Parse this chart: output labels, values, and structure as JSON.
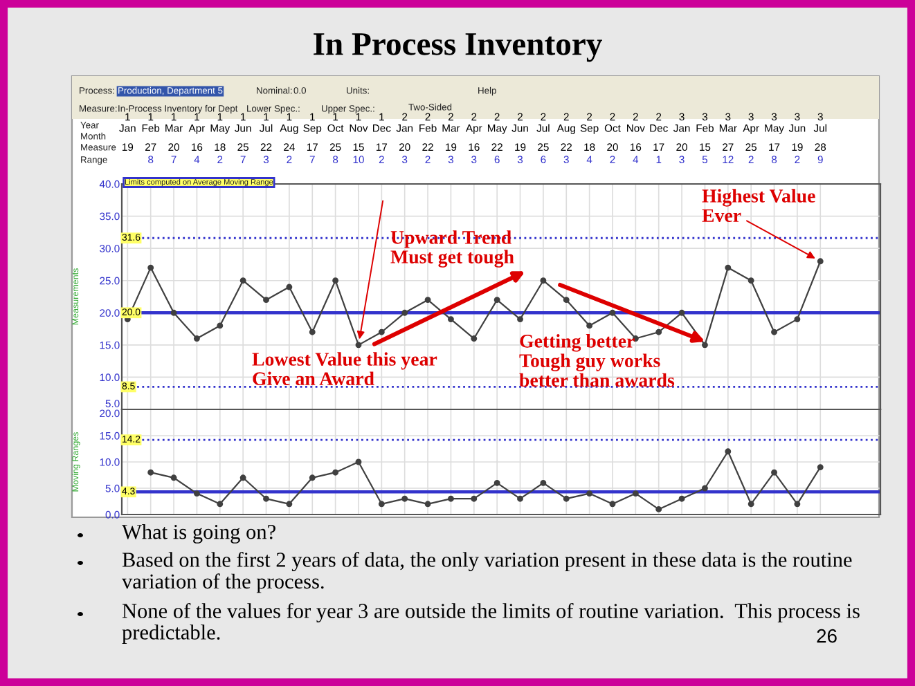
{
  "chart_data": [
    {
      "type": "line",
      "title": "In Process Inventory",
      "ylabel": "Measurements",
      "categories": [
        "1\nJan",
        "1\nFeb",
        "1\nMar",
        "1\nApr",
        "1\nMay",
        "1\nJun",
        "1\nJul",
        "1\nAug",
        "1\nSep",
        "1\nOct",
        "1\nNov",
        "1\nDec",
        "2\nJan",
        "2\nFeb",
        "2\nMar",
        "2\nApr",
        "2\nMay",
        "2\nJun",
        "2\nJul",
        "2\nAug",
        "2\nSep",
        "2\nOct",
        "2\nNov",
        "2\nDec",
        "3\nJan",
        "3\nFeb",
        "3\nMar",
        "3\nApr",
        "3\nMay",
        "3\nJun",
        "3\nJul"
      ],
      "series": [
        {
          "color": "#404040",
          "values": [
            19,
            27,
            20,
            16,
            18,
            25,
            22,
            24,
            17,
            25,
            15,
            17,
            20,
            22,
            19,
            16,
            22,
            19,
            25,
            22,
            18,
            20,
            16,
            17,
            20,
            15,
            27,
            25,
            17,
            19,
            28
          ]
        }
      ],
      "data_labels": true,
      "marker": "circle",
      "line_style": "solid",
      "grid": true,
      "ylim": [
        5,
        40
      ],
      "yticks": [
        {
          "value": 5,
          "label": "5.0"
        },
        {
          "value": 10,
          "label": "10.0"
        },
        {
          "value": 15,
          "label": "15.0"
        },
        {
          "value": 20,
          "label": "20.0"
        },
        {
          "value": 25,
          "label": "25.0"
        },
        {
          "value": 30,
          "label": "30.0"
        },
        {
          "value": 35,
          "label": "35.0"
        },
        {
          "value": 40,
          "label": "40.0"
        }
      ],
      "ref_lines": [
        {
          "axis": "y",
          "value": 31.6,
          "label": "31.6",
          "color": "#3333cc",
          "line_style": "dotted"
        },
        {
          "axis": "y",
          "value": 20.0,
          "label": "20.0",
          "color": "#3333cc",
          "line_style": "solid"
        },
        {
          "axis": "y",
          "value": 8.5,
          "label": "8.5",
          "color": "#3333cc",
          "line_style": "dotted"
        }
      ],
      "annotations": [
        "Process:",
        "Production, Department 5",
        "Measure:",
        "In-Process Inventory for Dept",
        "Nominal:",
        "0.0",
        "Units:",
        "Lower Spec.:",
        "Upper Spec.:",
        "Two-Sided",
        "Help",
        "Year",
        "Month",
        "Measure",
        "Range",
        "Limits computed on Average Moving Range",
        "Upward Trend\nMust get tough",
        {
          "text": "Lowest Value this year\nGive an Award",
          "x": "1\nNov",
          "y": 15
        },
        "Getting better\nTough guy works\nbetter than awards",
        {
          "text": "Highest Value\nEver",
          "x": "3\nJul",
          "y": 28
        }
      ]
    },
    {
      "type": "line",
      "ylabel": "Moving Ranges",
      "tick_labels": "y",
      "categories": [
        null,
        null,
        null,
        null,
        null,
        null,
        null,
        null,
        null,
        null,
        null,
        null,
        null,
        null,
        null,
        null,
        null,
        null,
        null,
        null,
        null,
        null,
        null,
        null,
        null,
        null,
        null,
        null,
        null,
        null,
        null
      ],
      "series": [
        {
          "color": "#404040",
          "values": [
            null,
            8,
            7,
            4,
            2,
            7,
            3,
            2,
            7,
            8,
            10,
            2,
            3,
            2,
            3,
            3,
            6,
            3,
            6,
            3,
            4,
            2,
            4,
            1,
            3,
            5,
            12,
            2,
            8,
            2,
            9
          ]
        }
      ],
      "data_labels": true,
      "marker": "circle",
      "line_style": "solid",
      "grid": true,
      "ylim": [
        0,
        20
      ],
      "yticks": [
        {
          "value": 0,
          "label": "0.0"
        },
        {
          "value": 5,
          "label": "5.0"
        },
        {
          "value": 10,
          "label": "10.0"
        },
        {
          "value": 15,
          "label": "15.0"
        },
        {
          "value": 20,
          "label": "20.0"
        }
      ],
      "ref_lines": [
        {
          "axis": "y",
          "value": 14.2,
          "label": "14.2",
          "color": "#3333cc",
          "line_style": "dotted"
        },
        {
          "axis": "y",
          "value": 4.3,
          "label": "4.3",
          "color": "#3333cc",
          "line_style": "solid"
        }
      ],
      "annotations": [
        "What is going on?",
        "Based on the first 2 years of data, the only variation present in these data is the routine variation of the process.",
        "None of the values for year 3 are outside the limits of routine variation.  This process is predictable.",
        "26"
      ]
    }
  ]
}
